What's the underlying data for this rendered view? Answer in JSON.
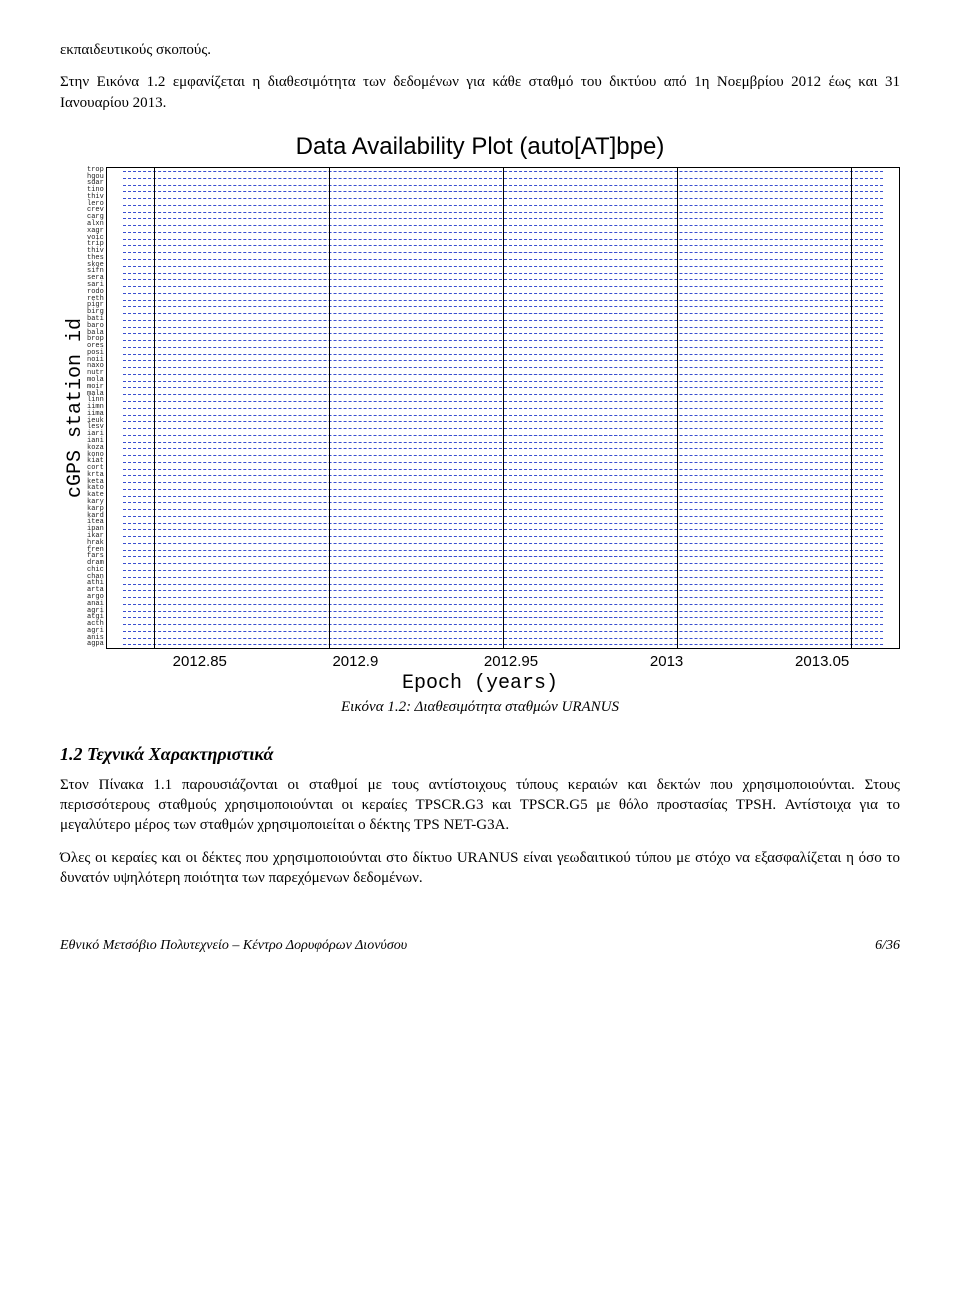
{
  "para_top1": "εκπαιδευτικούς σκοπούς.",
  "para_top2": "Στην Εικόνα 1.2 εμφανίζεται η διαθεσιμότητα των δεδομένων για κάθε σταθμό του δικτύου από 1η Νοεμβρίου 2012 έως και 31 Ιανουαρίου 2013.",
  "chart": {
    "title": "Data Availability Plot (auto[AT]bpe)",
    "ylabel": "cGPS station id",
    "xlabel": "Epoch (years)",
    "xticks": [
      "2012.85",
      "2012.9",
      "2012.95",
      "2013",
      "2013.05"
    ],
    "xtick_pos_pct": [
      6,
      28,
      50,
      72,
      94
    ],
    "stations": [
      "trop",
      "hgou",
      "sdar",
      "tino",
      "thiv",
      "lero",
      "crev",
      "carg",
      "alxn",
      "xagr",
      "voic",
      "trip",
      "thiv",
      "thes",
      "skoe",
      "sifn",
      "sera",
      "sari",
      "rodo",
      "reth",
      "pigr",
      "birg",
      "bati",
      "baro",
      "bala",
      "brop",
      "ores",
      "posi",
      "noii",
      "naxo",
      "nutr",
      "mola",
      "moir",
      "mala",
      "linn",
      "iimn",
      "iima",
      "ieuk",
      "lesv",
      "iari",
      "iani",
      "koza",
      "kono",
      "kiat",
      "cort",
      "krta",
      "keta",
      "kato",
      "kate",
      "kary",
      "karp",
      "kard",
      "itea",
      "ipan",
      "ikar",
      "hrak",
      "fren",
      "fars",
      "dram",
      "chic",
      "chan",
      "athi",
      "arta",
      "argo",
      "anai",
      "agri",
      "atgi",
      "acth",
      "agri",
      "anis",
      "agpa"
    ],
    "row_color": "#3a4fd0",
    "grid_color": "#000000",
    "background": "#ffffff"
  },
  "caption": "Εικόνα 1.2: Διαθεσιμότητα σταθμών URANUS",
  "section_heading": "1.2 Τεχνικά Χαρακτηριστικά",
  "para_b1": "Στον Πίνακα 1.1 παρουσιάζονται οι σταθμοί με τους αντίστοιχους τύπους κεραιών και δεκτών που χρησιμοποιούνται. Στους περισσότερους σταθμούς χρησιμοποιούνται οι κεραίες TPSCR.G3 και TPSCR.G5 με θόλο προστασίας TPSH. Αντίστοιχα για το μεγαλύτερο μέρος των σταθμών χρησιμοποιείται ο δέκτης TPS NET-G3A.",
  "para_b2": "Όλες οι κεραίες και οι δέκτες που χρησιμοποιούνται στο δίκτυο URANUS είναι γεωδαιτικού τύπου με στόχο να εξασφαλίζεται η όσο το δυνατόν υψηλότερη ποιότητα των παρεχόμενων δεδομένων.",
  "footer_left": "Εθνικό Μετσόβιο Πολυτεχνείο – Κέντρο Δορυφόρων Διονύσου",
  "footer_right": "6/36"
}
